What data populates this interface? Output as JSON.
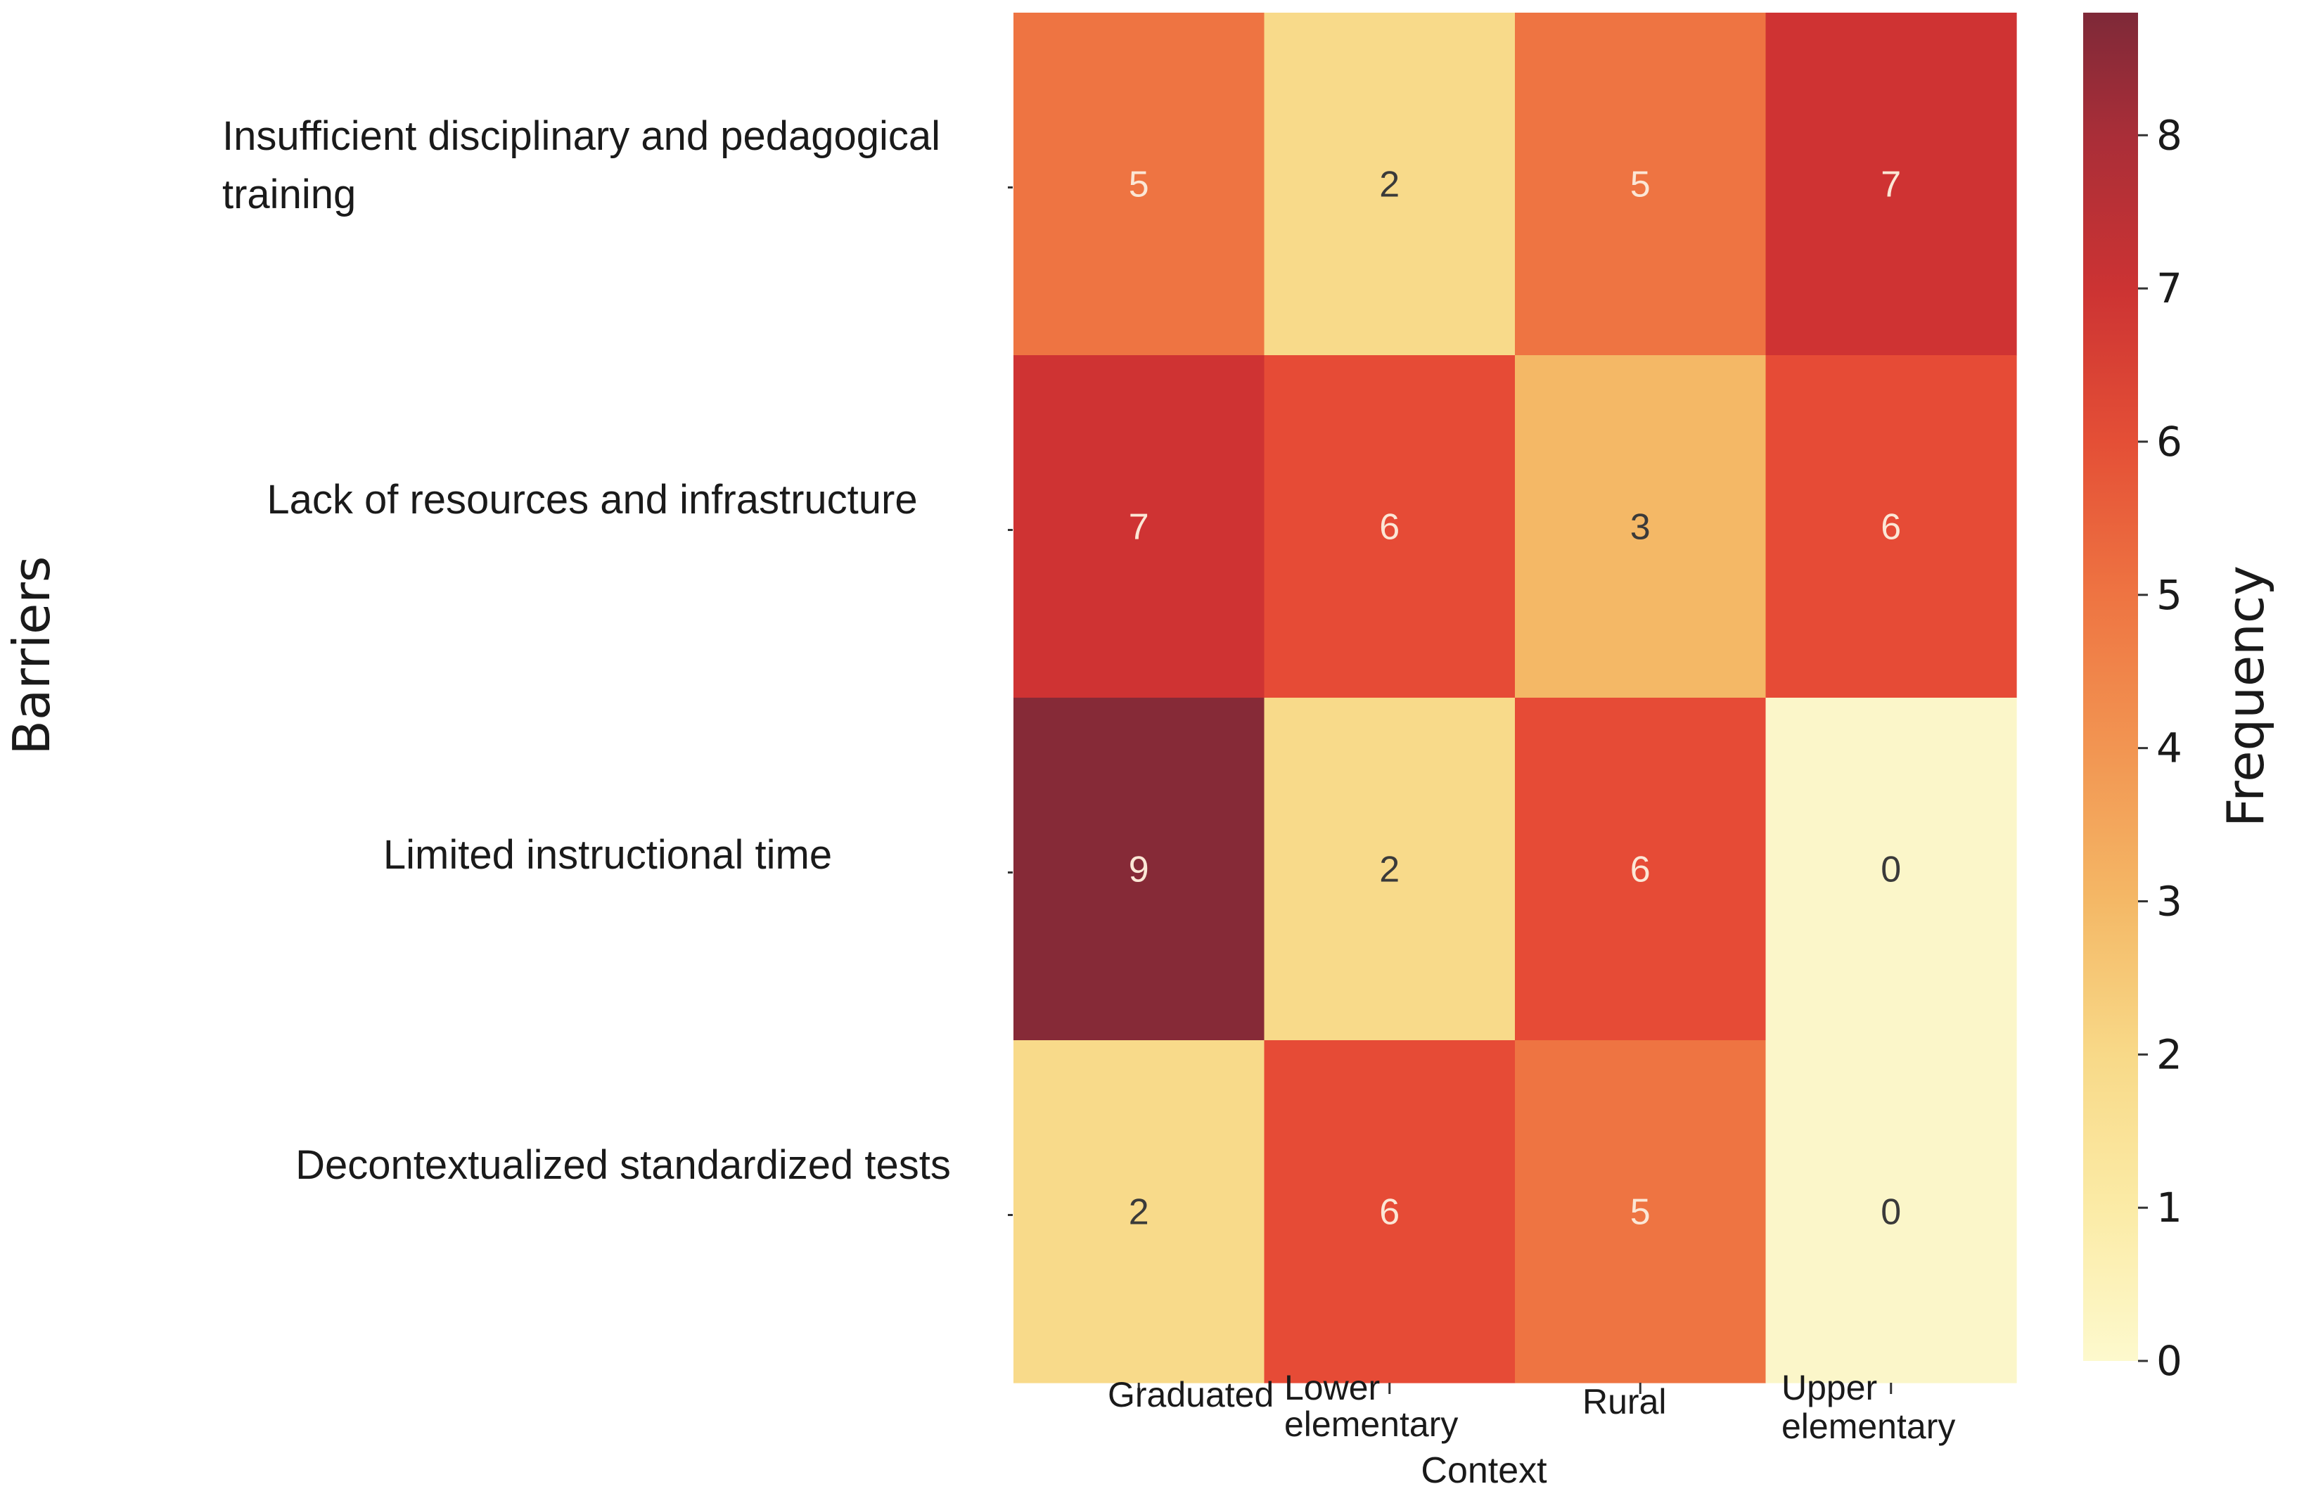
{
  "chart_data": {
    "type": "heatmap",
    "xlabel": "Context",
    "ylabel": "Barriers",
    "colorbar_label": "Frequency",
    "x_categories": [
      [
        "Graduated"
      ],
      [
        "Lower",
        "elementary"
      ],
      [
        "Rural"
      ],
      [
        "Upper",
        "elementary"
      ]
    ],
    "y_categories": [
      [
        "Insufficient disciplinary and pedagogical",
        "training"
      ],
      [
        "Lack of resources and infrastructure"
      ],
      [
        "Limited instructional time"
      ],
      [
        "Decontextualized standardized tests"
      ]
    ],
    "values": [
      [
        5,
        2,
        5,
        7
      ],
      [
        7,
        6,
        3,
        6
      ],
      [
        9,
        2,
        6,
        0
      ],
      [
        2,
        6,
        5,
        0
      ]
    ],
    "colorbar_range": [
      0,
      8.8
    ],
    "colorbar_ticks": [
      0,
      1,
      2,
      3,
      4,
      5,
      6,
      7,
      8
    ],
    "cell_colors": [
      [
        "#ee7442",
        "#f8da8a",
        "#ee7442",
        "#cf3333"
      ],
      [
        "#cf3333",
        "#e64b36",
        "#f4b866",
        "#e64b36"
      ],
      [
        "#862a37",
        "#f8da8a",
        "#e64b36",
        "#fbf6c9"
      ],
      [
        "#f8da8a",
        "#e64b36",
        "#ee7442",
        "#fbf6c9"
      ]
    ],
    "colormap_stops": [
      {
        "value": 0,
        "color": "#fdf9cd"
      },
      {
        "value": 1,
        "color": "#fbeba6"
      },
      {
        "value": 2,
        "color": "#f8d988"
      },
      {
        "value": 3,
        "color": "#f4b866"
      },
      {
        "value": 4,
        "color": "#f29552"
      },
      {
        "value": 5,
        "color": "#ee7442"
      },
      {
        "value": 6,
        "color": "#e44f36"
      },
      {
        "value": 7,
        "color": "#cc3333"
      },
      {
        "value": 8,
        "color": "#a92e38"
      },
      {
        "value": 8.8,
        "color": "#7e2938"
      }
    ]
  }
}
